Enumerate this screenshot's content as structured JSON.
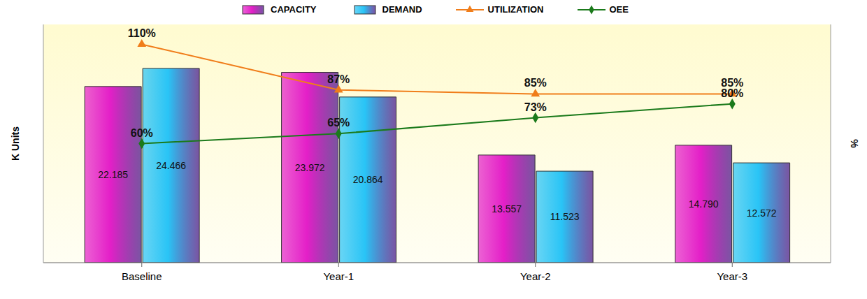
{
  "chart_data": {
    "type": "bar",
    "categories": [
      "Baseline",
      "Year-1",
      "Year-2",
      "Year-3"
    ],
    "y_label": "K Units",
    "y2_label": "%",
    "ylim": [
      0,
      30
    ],
    "y2lim": [
      0,
      120
    ],
    "tick_labels": "x",
    "grid": false,
    "legend": "top",
    "data_labels": true,
    "series": [
      {
        "name": "CAPACITY",
        "type": "bar",
        "color": "#e41fc8",
        "values": [
          22.185,
          23.972,
          13.557,
          14.79
        ],
        "value_labels": [
          "22.185",
          "23.972",
          "13.557",
          "14.790"
        ]
      },
      {
        "name": "DEMAND",
        "type": "bar",
        "color": "#29c4f6",
        "values": [
          24.466,
          20.864,
          11.523,
          12.572
        ]
      },
      {
        "name": "UTILIZATION",
        "type": "line",
        "axis": "y2",
        "color": "#f07d1a",
        "marker": "triangle",
        "values": [
          110,
          87,
          85,
          85
        ],
        "value_labels": [
          "110%",
          "87%",
          "85%",
          "85%"
        ]
      },
      {
        "name": "OEE",
        "type": "line",
        "axis": "y2",
        "color": "#1b7a1b",
        "marker": "diamond",
        "values": [
          60,
          65,
          73,
          80
        ],
        "value_labels": [
          "60%",
          "65%",
          "73%",
          "80%"
        ]
      }
    ]
  }
}
